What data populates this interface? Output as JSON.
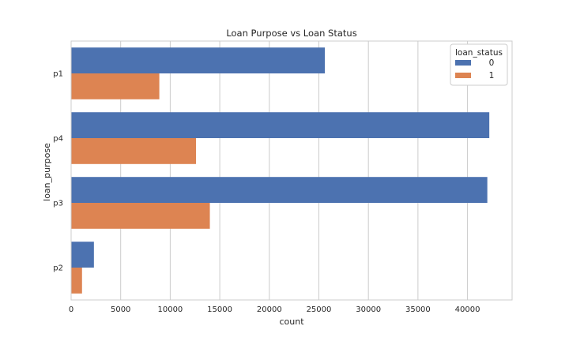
{
  "chart_data": {
    "type": "bar",
    "orientation": "horizontal",
    "title": "Loan Purpose vs Loan Status",
    "xlabel": "count",
    "ylabel": "loan_purpose",
    "categories": [
      "p1",
      "p4",
      "p3",
      "p2"
    ],
    "series": [
      {
        "name": "0",
        "values": [
          25600,
          42200,
          42000,
          2300
        ],
        "color": "#4c72b0"
      },
      {
        "name": "1",
        "values": [
          8900,
          12600,
          14000,
          1100
        ],
        "color": "#dd8452"
      }
    ],
    "xlim": [
      0,
      44500
    ],
    "xticks": [
      0,
      5000,
      10000,
      15000,
      20000,
      25000,
      30000,
      35000,
      40000
    ],
    "grid": "vertical",
    "legend": {
      "title": "loan_status",
      "placement": "top-right"
    }
  }
}
